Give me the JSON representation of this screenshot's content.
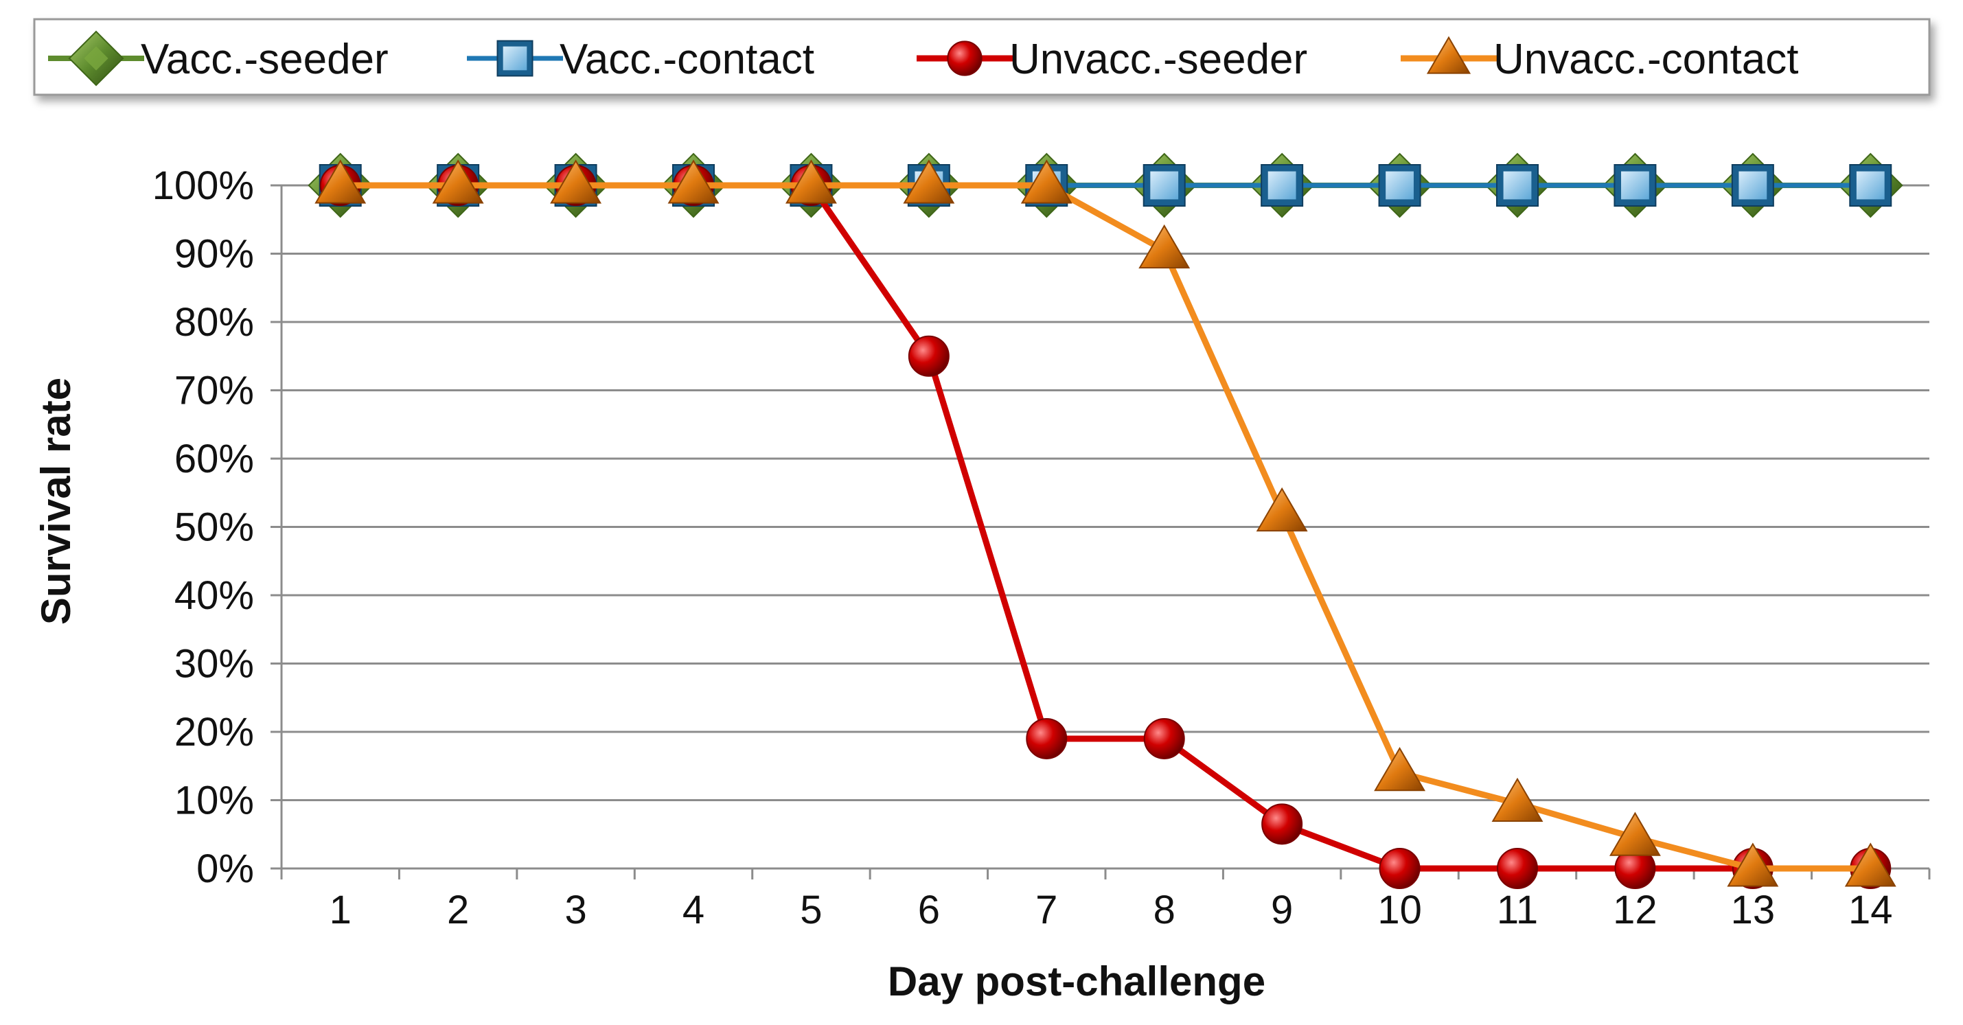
{
  "chart_data": {
    "type": "line",
    "title": "",
    "xlabel": "Day post-challenge",
    "ylabel": "Survival rate",
    "categories": [
      "1",
      "2",
      "3",
      "4",
      "5",
      "6",
      "7",
      "8",
      "9",
      "10",
      "11",
      "12",
      "13",
      "14"
    ],
    "ylim": [
      0,
      100
    ],
    "yticks": [
      "0%",
      "10%",
      "20%",
      "30%",
      "40%",
      "50%",
      "60%",
      "70%",
      "80%",
      "90%",
      "100%"
    ],
    "grid": true,
    "legend_position": "top",
    "series": [
      {
        "name": "Vacc.-seeder",
        "marker": "diamond",
        "color": "#5E8C2E",
        "values": [
          100,
          100,
          100,
          100,
          100,
          100,
          100,
          100,
          100,
          100,
          100,
          100,
          100,
          100
        ]
      },
      {
        "name": "Vacc.-contact",
        "marker": "square",
        "color": "#1F78B4",
        "values": [
          100,
          100,
          100,
          100,
          100,
          100,
          100,
          100,
          100,
          100,
          100,
          100,
          100,
          100
        ]
      },
      {
        "name": "Unvacc.-seeder",
        "marker": "circle",
        "color": "#D00000",
        "values": [
          100,
          100,
          100,
          100,
          100,
          75,
          19,
          19,
          6.5,
          0,
          0,
          0,
          0,
          0
        ]
      },
      {
        "name": "Unvacc.-contact",
        "marker": "triangle",
        "color": "#F28C1E",
        "values": [
          100,
          100,
          100,
          100,
          100,
          100,
          100,
          90.5,
          52,
          14,
          9.5,
          4.5,
          0,
          0
        ]
      }
    ]
  }
}
